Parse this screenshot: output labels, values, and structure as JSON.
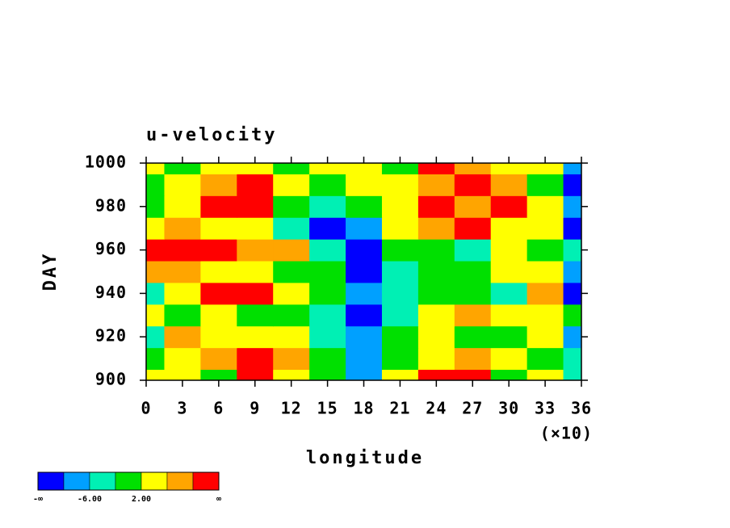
{
  "chart_data": {
    "type": "contour",
    "title": "u-velocity",
    "x_label": "longitude",
    "y_label": "DAY",
    "x_multiplier": "(×10)",
    "xlim": [
      0,
      360
    ],
    "ylim": [
      900,
      1000
    ],
    "xticks": [
      {
        "value": 0,
        "label": "0"
      },
      {
        "value": 30,
        "label": "3"
      },
      {
        "value": 60,
        "label": "6"
      },
      {
        "value": 90,
        "label": "9"
      },
      {
        "value": 120,
        "label": "12"
      },
      {
        "value": 150,
        "label": "15"
      },
      {
        "value": 180,
        "label": "18"
      },
      {
        "value": 210,
        "label": "21"
      },
      {
        "value": 240,
        "label": "24"
      },
      {
        "value": 270,
        "label": "27"
      },
      {
        "value": 300,
        "label": "30"
      },
      {
        "value": 330,
        "label": "33"
      },
      {
        "value": 360,
        "label": "36"
      }
    ],
    "yticks": [
      900,
      920,
      940,
      960,
      980,
      1000
    ],
    "x": [
      0,
      30,
      60,
      90,
      120,
      150,
      180,
      210,
      240,
      270,
      300,
      330,
      360
    ],
    "y": [
      900,
      910,
      920,
      930,
      940,
      950,
      960,
      970,
      980,
      990,
      1000
    ],
    "z": [
      [
        2,
        4,
        -2,
        10,
        2,
        -2,
        -8,
        2,
        11,
        10,
        0,
        2,
        -4
      ],
      [
        0,
        2,
        6,
        12,
        8,
        -2,
        -8,
        -2,
        2,
        6,
        4,
        0,
        -6
      ],
      [
        -4,
        6,
        4,
        2,
        4,
        -4,
        -7,
        0,
        2,
        -2,
        0,
        4,
        -8
      ],
      [
        4,
        -2,
        2,
        0,
        -2,
        -4,
        -11,
        -4,
        2,
        8,
        4,
        2,
        -2
      ],
      [
        -6,
        4,
        10,
        12,
        4,
        -2,
        -8,
        -6,
        -2,
        0,
        -4,
        6,
        -11
      ],
      [
        6,
        8,
        4,
        2,
        -2,
        -2,
        -12,
        -4,
        -2,
        0,
        2,
        4,
        -8
      ],
      [
        12,
        14,
        12,
        8,
        6,
        -6,
        -11,
        -2,
        0,
        -4,
        2,
        0,
        -6
      ],
      [
        2,
        6,
        4,
        2,
        -4,
        -11,
        -8,
        2,
        6,
        10,
        4,
        2,
        -11
      ],
      [
        0,
        4,
        10,
        12,
        -2,
        -4,
        0,
        2,
        12,
        6,
        10,
        2,
        -8
      ],
      [
        -2,
        4,
        8,
        10,
        2,
        0,
        2,
        4,
        8,
        12,
        6,
        -2,
        -11
      ],
      [
        2,
        0,
        2,
        4,
        0,
        2,
        4,
        0,
        10,
        6,
        4,
        2,
        -8
      ]
    ],
    "levels": [
      -10,
      -6,
      -2,
      2,
      6,
      10
    ],
    "colors": [
      "#0000ff",
      "#00a0ff",
      "#00f0b4",
      "#00e000",
      "#ffff00",
      "#ffa500",
      "#ff0000"
    ],
    "colorbar_min_label": "-∞",
    "colorbar_max_label": "∞",
    "colorbar_ticks": [
      {
        "value": -6,
        "label": "-6.00"
      },
      {
        "value": 2,
        "label": "2.00"
      }
    ]
  }
}
